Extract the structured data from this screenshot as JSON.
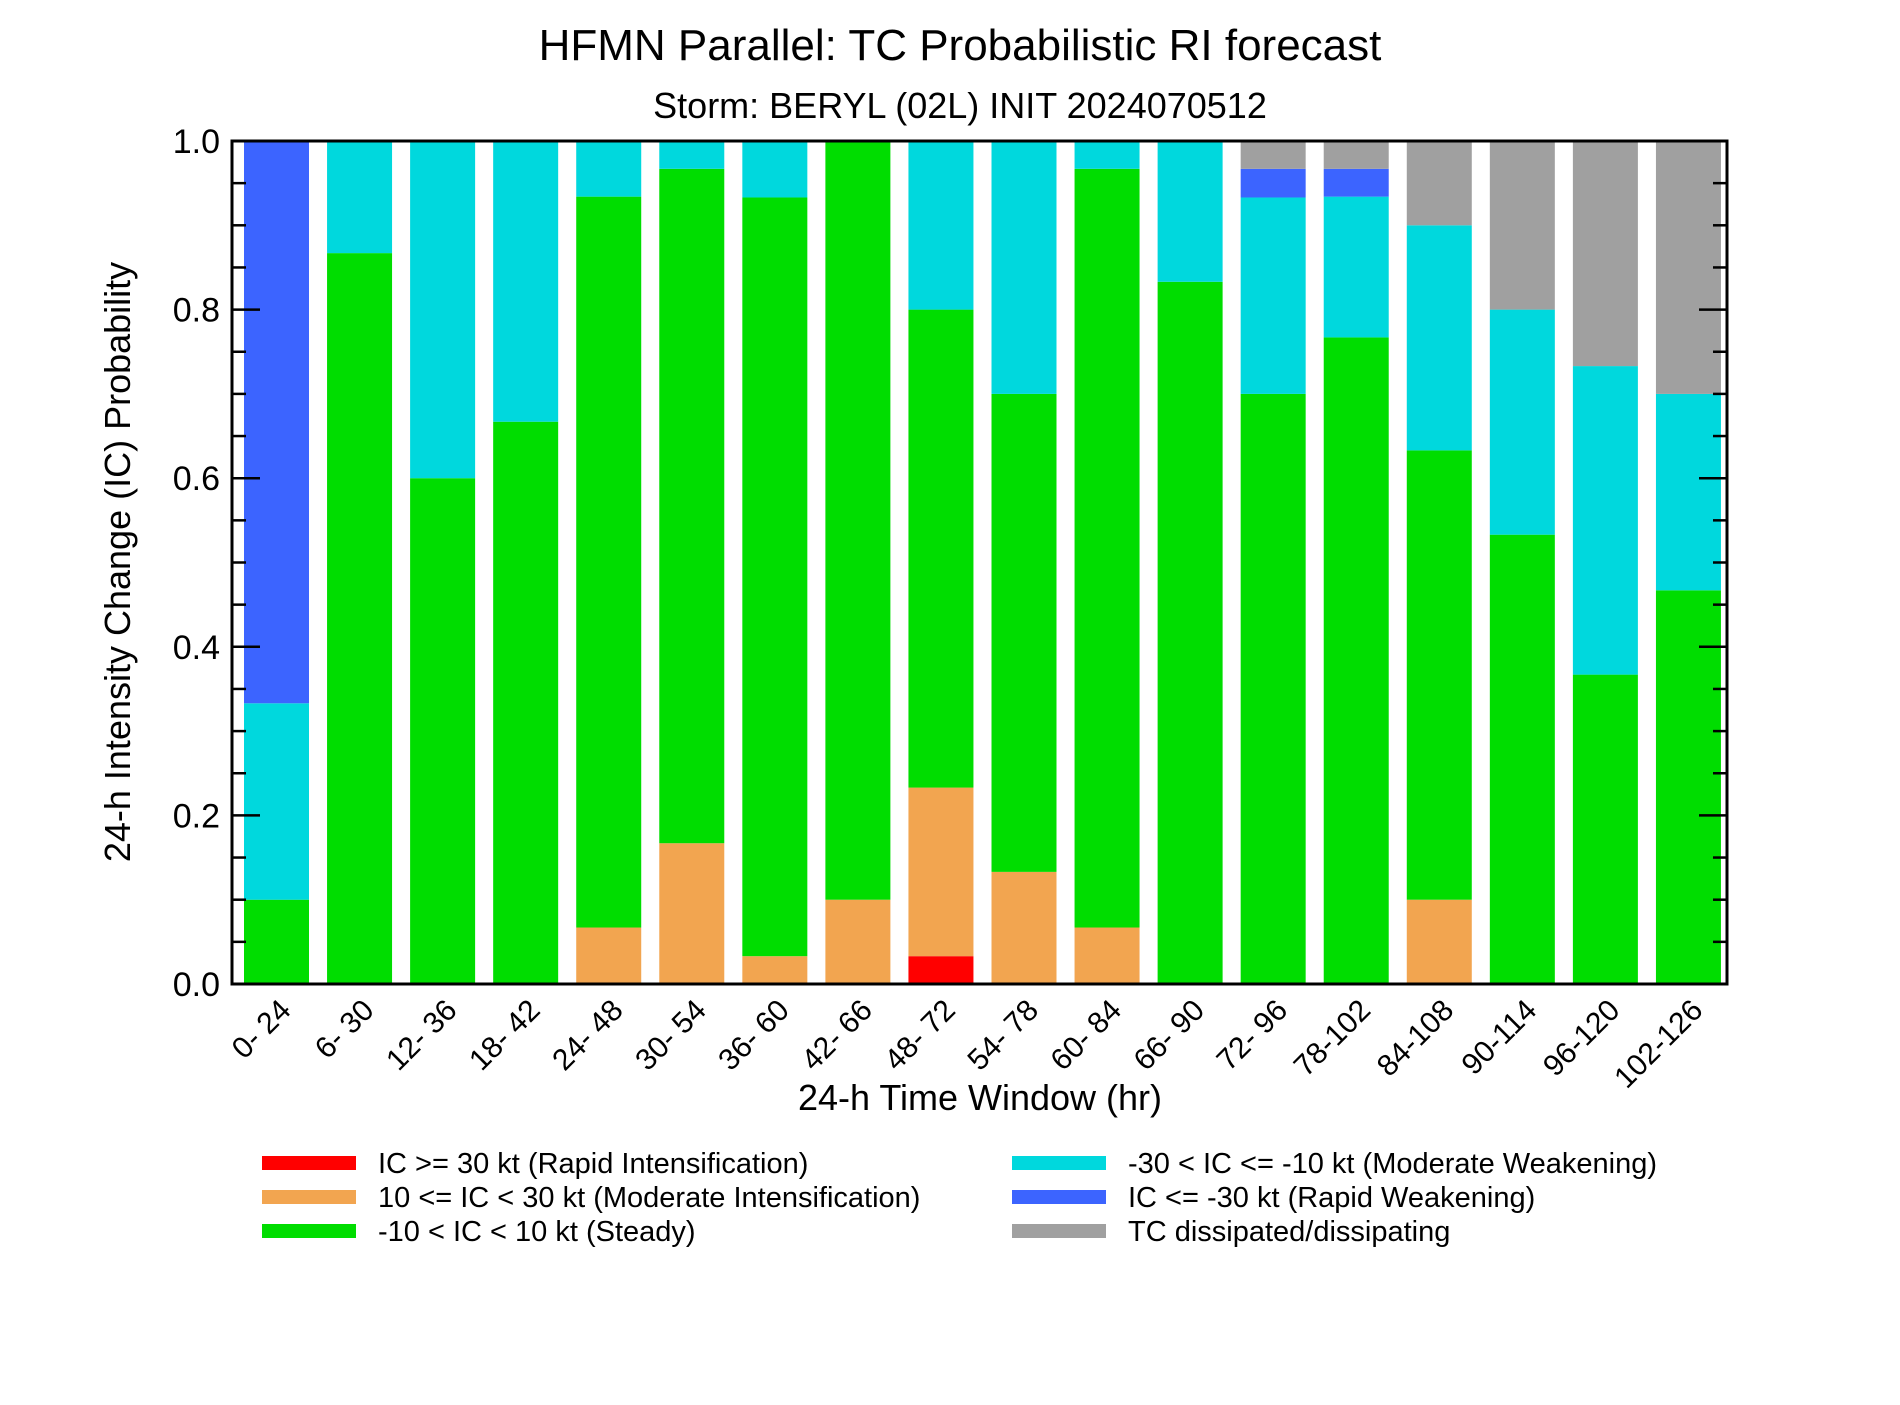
{
  "chart_data": {
    "type": "bar",
    "stacked": true,
    "title": "HFMN Parallel: TC Probabilistic RI forecast",
    "subtitle": "Storm: BERYL (02L) INIT 2024070512",
    "xlabel": "24-h Time Window (hr)",
    "ylabel": "24-h Intensity Change (IC) Probability",
    "ylim": [
      0,
      1
    ],
    "yticks": [
      0.0,
      0.2,
      0.4,
      0.6,
      0.8,
      1.0
    ],
    "ytick_labels": [
      "0.0",
      "0.2",
      "0.4",
      "0.6",
      "0.8",
      "1.0"
    ],
    "categories": [
      "0- 24",
      "6- 30",
      "12- 36",
      "18- 42",
      "24- 48",
      "30- 54",
      "36- 60",
      "42- 66",
      "48- 72",
      "54- 78",
      "60- 84",
      "66- 90",
      "72- 96",
      "78-102",
      "84-108",
      "90-114",
      "96-120",
      "102-126"
    ],
    "series": [
      {
        "name": "IC >= 30 kt (Rapid Intensification)",
        "color": "#ff0000",
        "values": [
          0,
          0,
          0,
          0,
          0,
          0,
          0,
          0,
          0.033,
          0,
          0,
          0,
          0,
          0,
          0,
          0,
          0,
          0
        ]
      },
      {
        "name": "10 <= IC < 30 kt (Moderate Intensification)",
        "color": "#f2a550",
        "values": [
          0,
          0,
          0,
          0,
          0.067,
          0.167,
          0.033,
          0.1,
          0.2,
          0.133,
          0.067,
          0,
          0,
          0,
          0.1,
          0,
          0,
          0
        ]
      },
      {
        "name": "-10 < IC < 10 kt (Steady)",
        "color": "#00dd00",
        "values": [
          0.1,
          0.867,
          0.6,
          0.667,
          0.867,
          0.8,
          0.9,
          0.9,
          0.567,
          0.567,
          0.9,
          0.833,
          0.7,
          0.767,
          0.533,
          0.533,
          0.367,
          0.467
        ]
      },
      {
        "name": "-30 < IC <= -10 kt (Moderate Weakening)",
        "color": "#00d8dd",
        "values": [
          0.233,
          0.133,
          0.4,
          0.333,
          0.066,
          0.033,
          0.067,
          0,
          0.2,
          0.3,
          0.033,
          0.167,
          0.233,
          0.167,
          0.267,
          0.267,
          0.366,
          0.233
        ]
      },
      {
        "name": "IC <= -30 kt (Rapid Weakening)",
        "color": "#3c64ff",
        "values": [
          0.667,
          0,
          0,
          0,
          0,
          0,
          0,
          0,
          0,
          0,
          0,
          0,
          0.034,
          0.033,
          0,
          0,
          0,
          0
        ]
      },
      {
        "name": "TC dissipated/dissipating",
        "color": "#a0a0a0",
        "values": [
          0,
          0,
          0,
          0,
          0,
          0,
          0,
          0,
          0,
          0,
          0,
          0,
          0.033,
          0.033,
          0.1,
          0.2,
          0.267,
          0.3
        ]
      }
    ],
    "legend_placement": "bottom",
    "grid": false
  }
}
